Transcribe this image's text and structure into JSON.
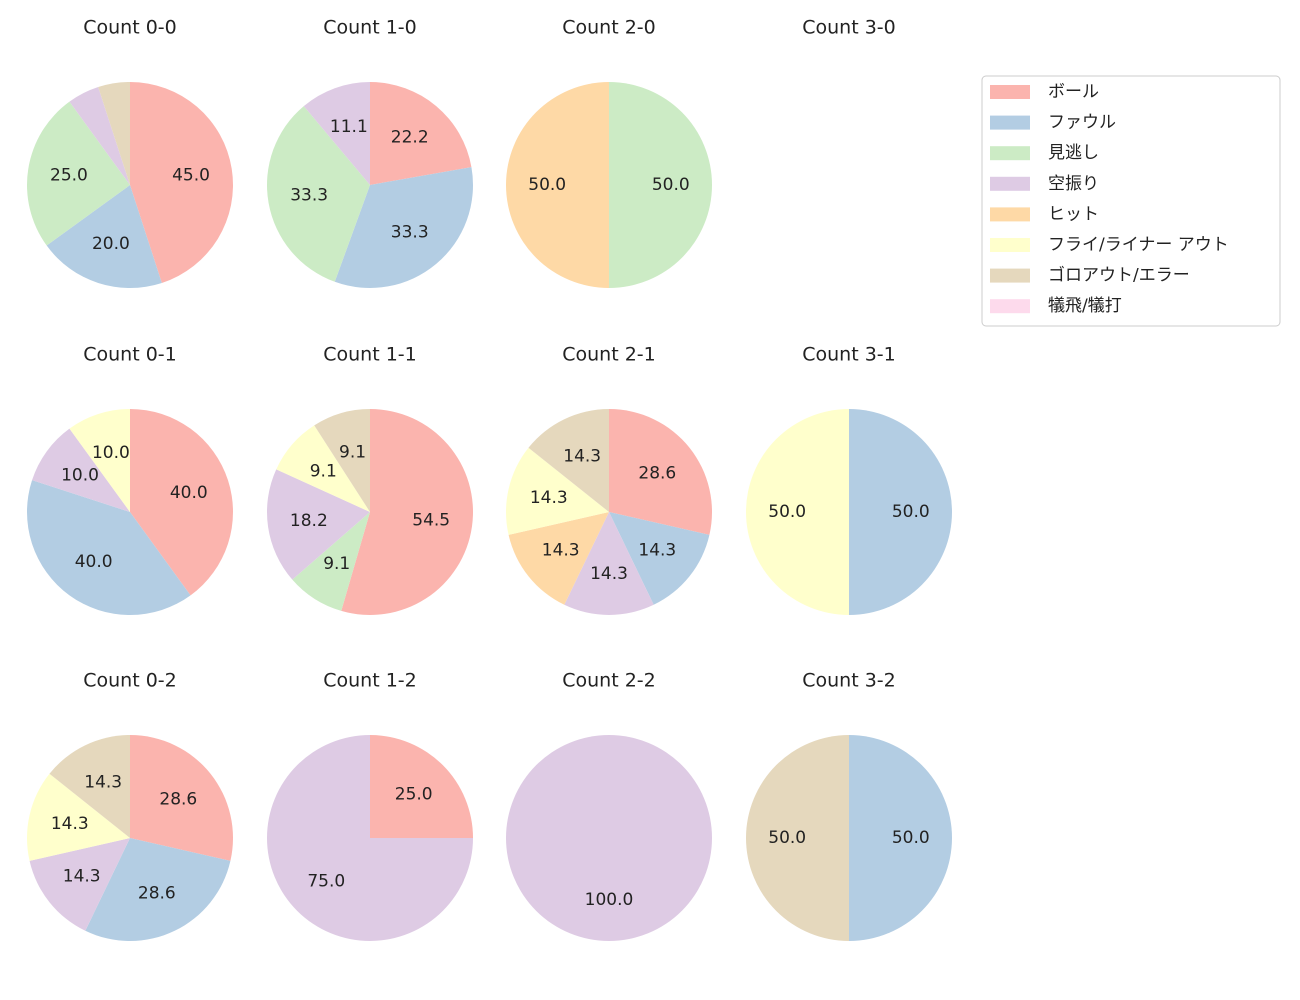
{
  "chart_data": [
    {
      "type": "pie",
      "title": "Count 0-0",
      "categories": [
        "ボール",
        "ファウル",
        "見逃し",
        "空振り",
        "ゴロアウト/エラー"
      ],
      "values": [
        45,
        20,
        25,
        5,
        5
      ],
      "value_labels": [
        "45.0",
        "20.0",
        "25.0",
        null,
        null
      ]
    },
    {
      "type": "pie",
      "title": "Count 1-0",
      "categories": [
        "ボール",
        "ファウル",
        "見逃し",
        "空振り"
      ],
      "values": [
        22.2,
        33.3,
        33.3,
        11.1
      ],
      "value_labels": [
        "22.2",
        "33.3",
        "33.3",
        "11.1"
      ]
    },
    {
      "type": "pie",
      "title": "Count 2-0",
      "categories": [
        "見逃し",
        "ヒット"
      ],
      "values": [
        50,
        50
      ],
      "value_labels": [
        "50.0",
        "50.0"
      ]
    },
    {
      "type": "pie",
      "title": "Count 3-0",
      "categories": [],
      "values": [],
      "value_labels": []
    },
    {
      "type": "pie",
      "title": "Count 0-1",
      "categories": [
        "ボール",
        "ファウル",
        "空振り",
        "フライ/ライナー アウト"
      ],
      "values": [
        40,
        40,
        10,
        10
      ],
      "value_labels": [
        "40.0",
        "40.0",
        "10.0",
        "10.0"
      ]
    },
    {
      "type": "pie",
      "title": "Count 1-1",
      "categories": [
        "ボール",
        "見逃し",
        "空振り",
        "フライ/ライナー アウト",
        "ゴロアウト/エラー"
      ],
      "values": [
        54.5,
        9.1,
        18.2,
        9.1,
        9.1
      ],
      "value_labels": [
        "54.5",
        "9.1",
        "18.2",
        "9.1",
        "9.1"
      ]
    },
    {
      "type": "pie",
      "title": "Count 2-1",
      "categories": [
        "ボール",
        "ファウル",
        "空振り",
        "ヒット",
        "フライ/ライナー アウト",
        "ゴロアウト/エラー"
      ],
      "values": [
        28.6,
        14.3,
        14.3,
        14.3,
        14.3,
        14.3
      ],
      "value_labels": [
        "28.6",
        "14.3",
        "14.3",
        "14.3",
        "14.3",
        "14.3"
      ]
    },
    {
      "type": "pie",
      "title": "Count 3-1",
      "categories": [
        "ファウル",
        "フライ/ライナー アウト"
      ],
      "values": [
        50,
        50
      ],
      "value_labels": [
        "50.0",
        "50.0"
      ]
    },
    {
      "type": "pie",
      "title": "Count 0-2",
      "categories": [
        "ボール",
        "ファウル",
        "空振り",
        "フライ/ライナー アウト",
        "ゴロアウト/エラー"
      ],
      "values": [
        28.6,
        28.6,
        14.3,
        14.3,
        14.3
      ],
      "value_labels": [
        "28.6",
        "28.6",
        "14.3",
        "14.3",
        "14.3"
      ]
    },
    {
      "type": "pie",
      "title": "Count 1-2",
      "categories": [
        "ボール",
        "空振り"
      ],
      "values": [
        25,
        75
      ],
      "value_labels": [
        "25.0",
        "75.0"
      ]
    },
    {
      "type": "pie",
      "title": "Count 2-2",
      "categories": [
        "空振り"
      ],
      "values": [
        100
      ],
      "value_labels": [
        "100.0"
      ]
    },
    {
      "type": "pie",
      "title": "Count 3-2",
      "categories": [
        "ファウル",
        "ゴロアウト/エラー"
      ],
      "values": [
        50,
        50
      ],
      "value_labels": [
        "50.0",
        "50.0"
      ]
    }
  ],
  "legend": {
    "position": "upper right",
    "items": [
      {
        "name": "ボール",
        "color": "#fbb4ae"
      },
      {
        "name": "ファウル",
        "color": "#b3cde3"
      },
      {
        "name": "見逃し",
        "color": "#ccebc5"
      },
      {
        "name": "空振り",
        "color": "#decbe4"
      },
      {
        "name": "ヒット",
        "color": "#fed9a6"
      },
      {
        "name": "フライ/ライナー アウト",
        "color": "#ffffcc"
      },
      {
        "name": "ゴロアウト/エラー",
        "color": "#e5d8bd"
      },
      {
        "name": "犠飛/犠打",
        "color": "#fddaec"
      }
    ]
  }
}
